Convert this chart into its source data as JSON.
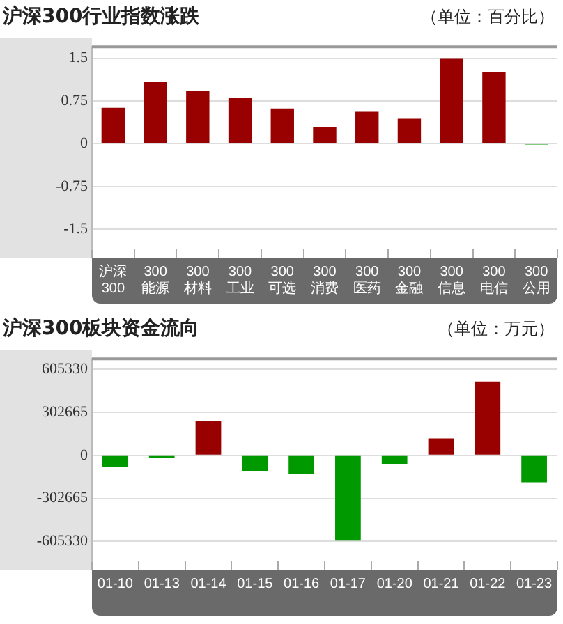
{
  "chart_data": [
    {
      "type": "bar",
      "title": "沪深300行业指数涨跌",
      "subtitle": "（单位：百分比）",
      "categories": [
        "沪深300",
        "300能源",
        "300材料",
        "300工业",
        "300可选",
        "300消费",
        "300医药",
        "300金融",
        "300信息",
        "300电信",
        "300公用"
      ],
      "values": [
        0.63,
        1.08,
        0.93,
        0.81,
        0.62,
        0.3,
        0.56,
        0.44,
        1.5,
        1.26,
        -0.02
      ],
      "colors": [
        "#990000",
        "#990000",
        "#990000",
        "#990000",
        "#990000",
        "#990000",
        "#990000",
        "#990000",
        "#990000",
        "#990000",
        "#009900"
      ],
      "ylim": [
        -1.85,
        1.7
      ],
      "yticks": [
        -1.5,
        -0.75,
        0,
        0.75,
        1.5
      ],
      "grid": "y",
      "legend": false
    },
    {
      "type": "bar",
      "title": "沪深300板块资金流向",
      "subtitle": "（单位：万元）",
      "categories": [
        "01-10",
        "01-13",
        "01-14",
        "01-15",
        "01-16",
        "01-17",
        "01-20",
        "01-21",
        "01-22",
        "01-23"
      ],
      "values": [
        -80000,
        -20000,
        240000,
        -110000,
        -130000,
        -600000,
        -60000,
        120000,
        520000,
        -190000
      ],
      "colors": [
        "#009900",
        "#009900",
        "#990000",
        "#009900",
        "#009900",
        "#009900",
        "#009900",
        "#990000",
        "#990000",
        "#009900"
      ],
      "ylim": [
        -746000,
        680000
      ],
      "yticks": [
        -605330,
        -302665,
        0,
        302665,
        605330
      ],
      "grid": "y",
      "legend": false
    }
  ]
}
